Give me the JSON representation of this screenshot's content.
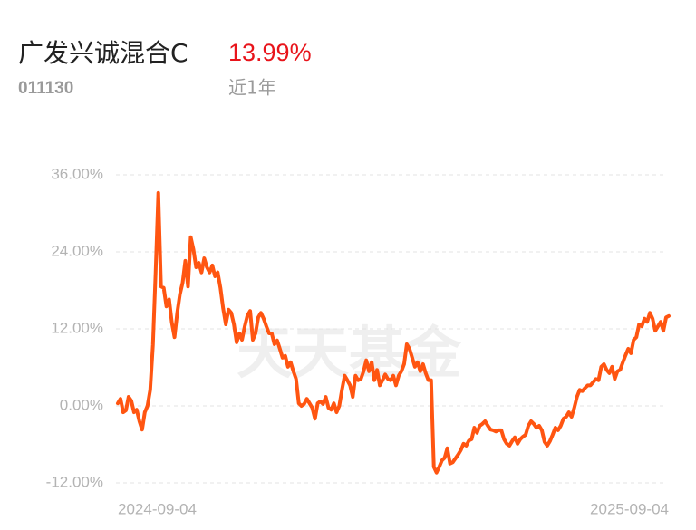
{
  "header": {
    "title": "广发兴诚混合C",
    "return": "13.99%",
    "code": "011130",
    "period": "近1年"
  },
  "chart_data": {
    "type": "line",
    "watermark": "天天基金",
    "categories": [
      "2024-09-04",
      null,
      null,
      null,
      null,
      null,
      null,
      null,
      null,
      null,
      null,
      null,
      null,
      null,
      null,
      null,
      null,
      null,
      null,
      null,
      null,
      null,
      null,
      null,
      null,
      null,
      null,
      null,
      null,
      null,
      null,
      null,
      null,
      null,
      null,
      null,
      null,
      null,
      null,
      null,
      null,
      null,
      null,
      null,
      null,
      null,
      null,
      null,
      null,
      null,
      null,
      null,
      null,
      null,
      null,
      null,
      null,
      null,
      null,
      null,
      null,
      null,
      null,
      null,
      null,
      null,
      null,
      null,
      null,
      null,
      null,
      null,
      null,
      null,
      null,
      null,
      null,
      null,
      null,
      null,
      null,
      null,
      null,
      null,
      null,
      null,
      null,
      null,
      null,
      null,
      null,
      null,
      null,
      null,
      null,
      null,
      null,
      null,
      null,
      null,
      null,
      null,
      null,
      null,
      null,
      null,
      null,
      null,
      null,
      null,
      null,
      null,
      null,
      null,
      null,
      null,
      null,
      null,
      null,
      null,
      null,
      null,
      null,
      null,
      null,
      null,
      null,
      null,
      null,
      null,
      null,
      null,
      null,
      null,
      null,
      null,
      null,
      null,
      null,
      null,
      null,
      null,
      null,
      null,
      null,
      null,
      null,
      null,
      null,
      null,
      null,
      null,
      null,
      null,
      null,
      null,
      null,
      null,
      null,
      null,
      null,
      null,
      null,
      null,
      null,
      null,
      null,
      null,
      null,
      null,
      null,
      null,
      null,
      null,
      null,
      null,
      null,
      null,
      null,
      null,
      null,
      null,
      null,
      null,
      null,
      null,
      null,
      null,
      null,
      null,
      null,
      null,
      null,
      null,
      null,
      null,
      null,
      null,
      null,
      null,
      null,
      null,
      null,
      null,
      "2025-09-04"
    ],
    "series": [
      {
        "color": "#ff5511",
        "values": [
          0.4,
          1.1,
          -1.0,
          -0.7,
          1.4,
          0.8,
          -1.0,
          -0.6,
          -2.4,
          -3.7,
          -1.0,
          0,
          2.5,
          9.5,
          20.8,
          33.2,
          18.6,
          18.4,
          15.5,
          16.6,
          13.0,
          10.7,
          14.5,
          17.4,
          19.2,
          22.6,
          18.6,
          26.3,
          24.4,
          21.6,
          22.3,
          20.8,
          23.0,
          21.6,
          20.8,
          21.9,
          20.2,
          20.8,
          18.4,
          15.2,
          12.7,
          15.0,
          14.5,
          12.7,
          9.9,
          11.3,
          10.3,
          12.4,
          14.1,
          14.8,
          10.3,
          11.3,
          13.8,
          14.5,
          13.6,
          12.4,
          11.3,
          11.3,
          9.6,
          10.2,
          8.9,
          7.5,
          7.8,
          6.1,
          6.8,
          5.4,
          4.2,
          0.4,
          0,
          0.3,
          1.1,
          0.4,
          -0.3,
          -2.0,
          0.4,
          0.7,
          0.3,
          1.4,
          -0.3,
          -0.6,
          0.4,
          -1.0,
          0,
          2.5,
          4.7,
          4.0,
          3.2,
          1.4,
          4.7,
          4.0,
          4.2,
          5.4,
          7.1,
          5.4,
          6.8,
          4.0,
          5.6,
          3.2,
          4.0,
          4.9,
          4.2,
          4.0,
          4.7,
          3.2,
          4.7,
          5.4,
          6.5,
          9.6,
          8.9,
          7.5,
          6.1,
          6.8,
          5.4,
          6.5,
          5.1,
          4.0,
          4.0,
          -9.5,
          -10.4,
          -9.5,
          -8.5,
          -8.1,
          -6.6,
          -9.0,
          -8.8,
          -8.2,
          -7.6,
          -6.9,
          -5.9,
          -6.2,
          -5.4,
          -5.2,
          -3.4,
          -4.2,
          -3.1,
          -2.8,
          -2.4,
          -3.1,
          -3.7,
          -3.8,
          -4.0,
          -3.8,
          -3.8,
          -5.2,
          -5.9,
          -6.2,
          -5.5,
          -4.9,
          -5.9,
          -5.2,
          -4.8,
          -4.5,
          -3.1,
          -2.4,
          -2.8,
          -3.4,
          -3.1,
          -3.8,
          -5.6,
          -6.2,
          -5.5,
          -4.5,
          -3.4,
          -3.8,
          -3.1,
          -2.0,
          -1.7,
          -1.0,
          -1.7,
          -0.3,
          1.4,
          2.5,
          2.3,
          2.8,
          3.2,
          3.2,
          3.7,
          4.2,
          4.0,
          6.1,
          6.5,
          5.6,
          5.1,
          6.1,
          4.2,
          5.4,
          5.6,
          6.8,
          7.9,
          8.9,
          8.2,
          10.3,
          10.7,
          12.7,
          12.4,
          13.6,
          13.1,
          14.5,
          13.6,
          11.7,
          12.4,
          13.1,
          11.7,
          13.8,
          14.0
        ]
      }
    ],
    "ylim": [
      -12,
      36
    ],
    "yticks": [
      {
        "value": 36,
        "label": "36.00%"
      },
      {
        "value": 24,
        "label": "24.00%"
      },
      {
        "value": 12,
        "label": "12.00%"
      },
      {
        "value": 0,
        "label": "0.00%"
      },
      {
        "value": -12,
        "label": "-12.00%"
      }
    ],
    "grid": true
  }
}
